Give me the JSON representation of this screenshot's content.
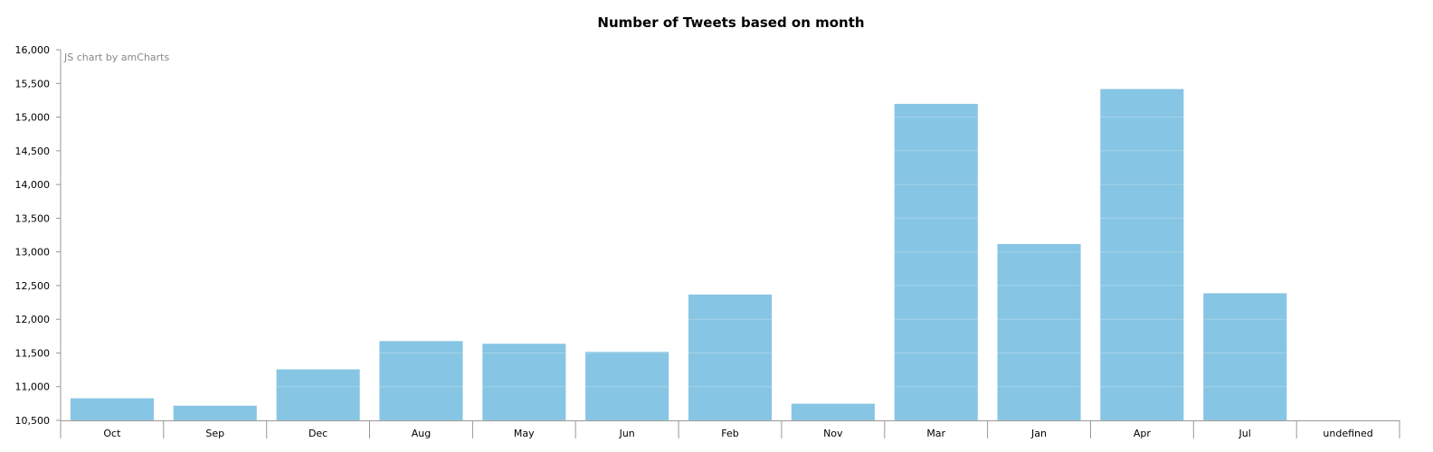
{
  "credit": "JS chart by amCharts",
  "colors": {
    "bar": "#86c5e3",
    "bar_stroke": "#86c5e3",
    "grid": "#ffffff",
    "axis": "#999999",
    "text": "#000000",
    "credit": "#888888"
  },
  "chart_data": {
    "type": "bar",
    "title": "Number of Tweets based on month",
    "xlabel": "",
    "ylabel": "",
    "ylim": [
      10500,
      16000
    ],
    "y_ticks": [
      10500,
      11000,
      11500,
      12000,
      12500,
      13000,
      13500,
      14000,
      14500,
      15000,
      15500,
      16000
    ],
    "y_tick_labels": [
      "10,500",
      "11,000",
      "11,500",
      "12,000",
      "12,500",
      "13,000",
      "13,500",
      "14,000",
      "14,500",
      "15,000",
      "15,500",
      "16,000"
    ],
    "categories": [
      "Oct",
      "Sep",
      "Dec",
      "Aug",
      "May",
      "Jun",
      "Feb",
      "Nov",
      "Mar",
      "Jan",
      "Apr",
      "Jul",
      "undefined"
    ],
    "values": [
      10820,
      10710,
      11250,
      11670,
      11630,
      11510,
      12360,
      10740,
      15190,
      13110,
      15410,
      12380,
      null
    ],
    "grid": true,
    "legend": "none"
  }
}
